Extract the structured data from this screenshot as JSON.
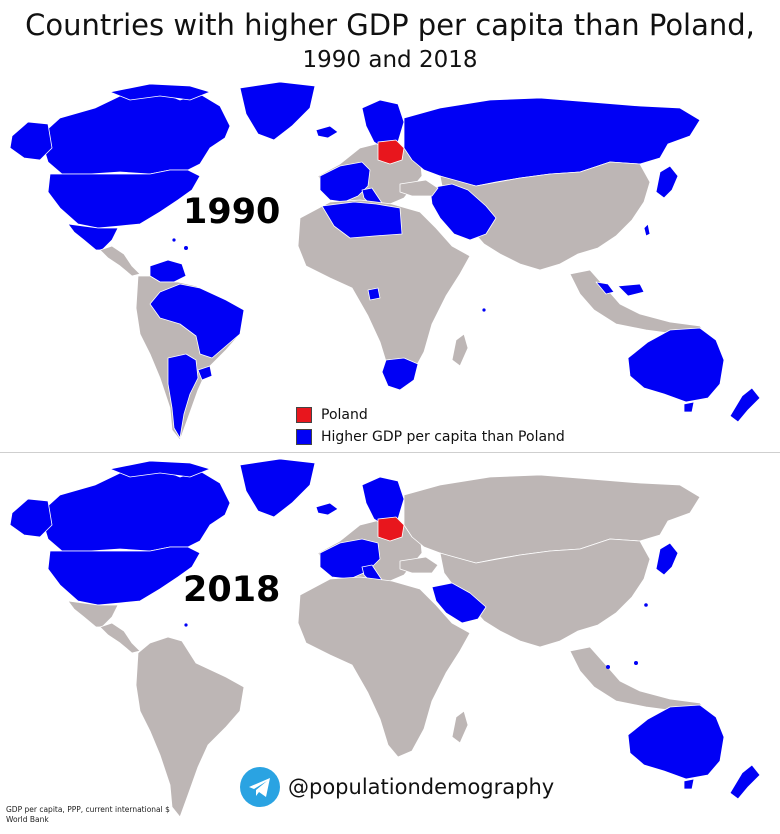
{
  "title": "Countries with higher GDP per capita than Poland,",
  "subtitle": "1990 and 2018",
  "maps": [
    {
      "year": "1990"
    },
    {
      "year": "2018"
    }
  ],
  "legend": {
    "items": [
      {
        "label": "Poland",
        "color": "#e8161d"
      },
      {
        "label": "Higher GDP per capita than Poland",
        "color": "#0000f5"
      }
    ]
  },
  "colors": {
    "land": "#bdb6b5",
    "higher": "#0000f5",
    "poland": "#e8161d",
    "border": "#ffffff"
  },
  "handle": {
    "icon": "telegram-icon",
    "text": "@populationdemography"
  },
  "source": {
    "line1": "GDP per capita, PPP, current international $",
    "line2": "World Bank"
  }
}
